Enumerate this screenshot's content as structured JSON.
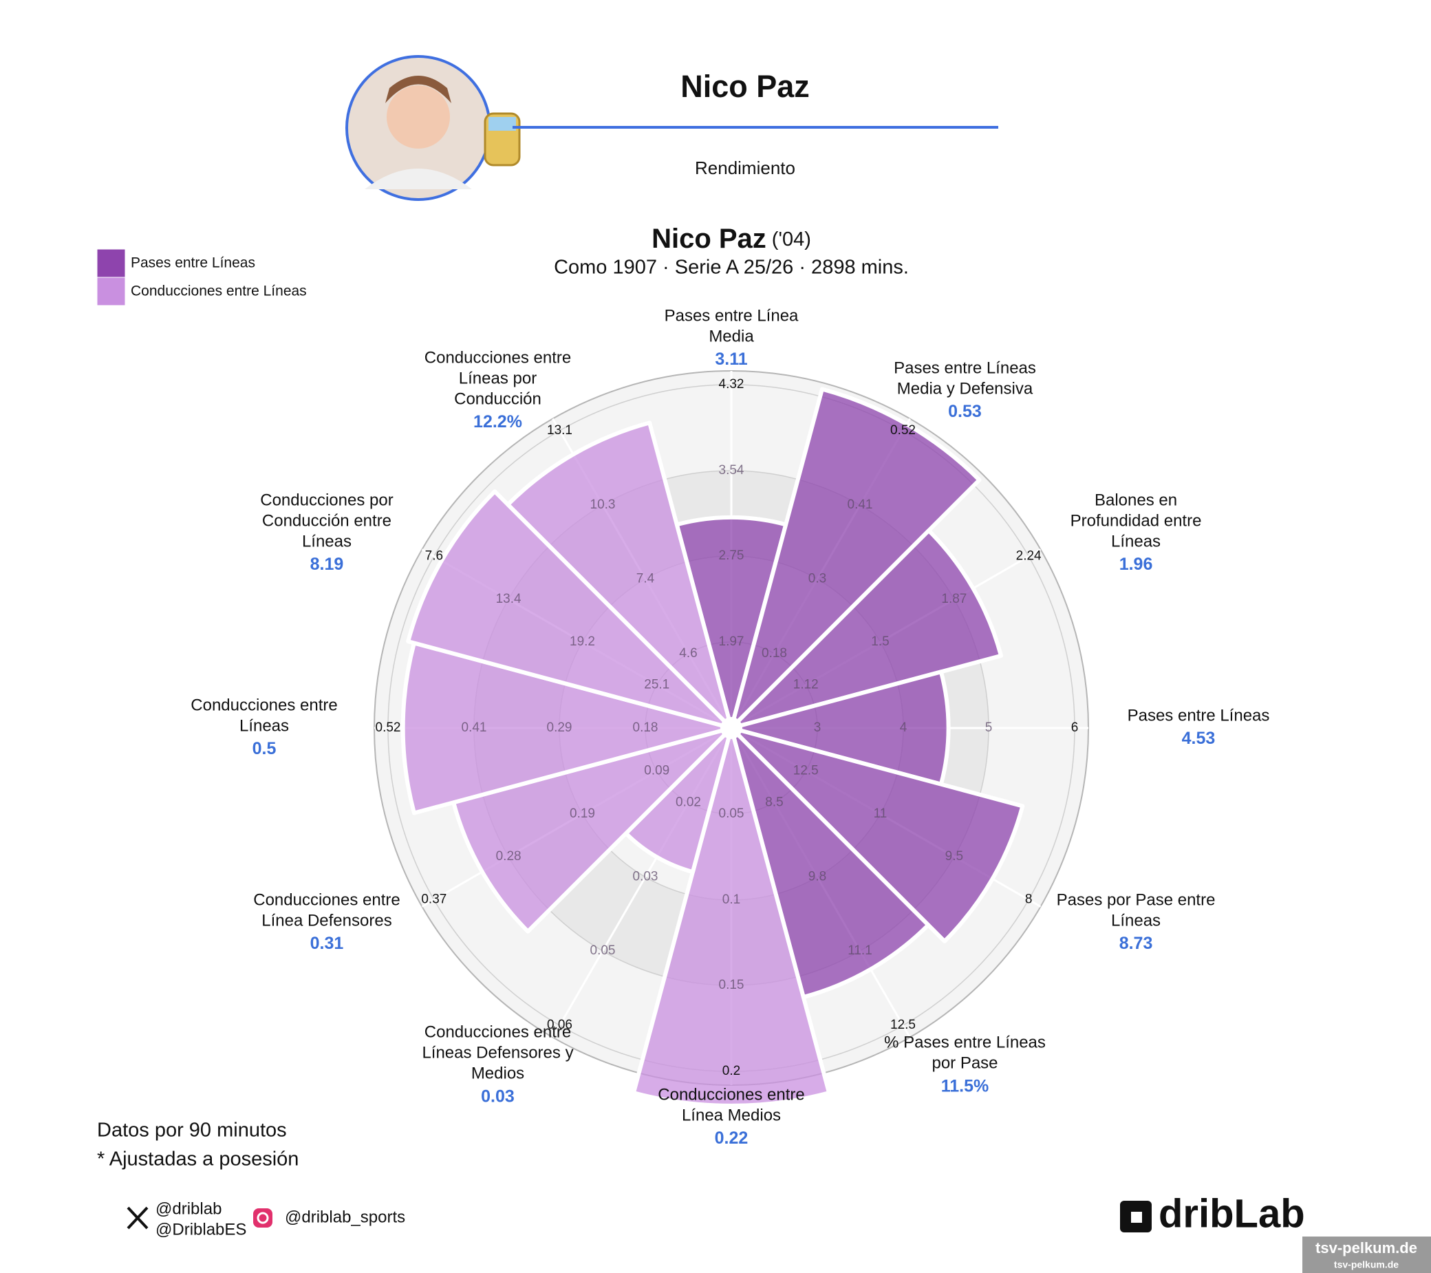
{
  "header": {
    "name": "Nico Paz",
    "subtitle": "Rendimiento"
  },
  "chart_data": {
    "type": "pizza",
    "title": "Nico Paz",
    "title_suffix": "('04)",
    "subtitle": "Como 1907 · Serie A 25/26 · 2898 mins.",
    "series": [
      {
        "name": "Pases entre Líneas",
        "color": "#8e44ad"
      },
      {
        "name": "Conducciones entre Líneas",
        "color": "#c990e0"
      }
    ],
    "categories": [
      [
        "Pases entre Línea",
        "Media"
      ],
      [
        "Pases entre Líneas",
        "Media y Defensiva"
      ],
      [
        "Balones en",
        "Profundidad entre",
        "Líneas"
      ],
      [
        "Pases entre Líneas"
      ],
      [
        "Pases por Pase entre",
        "Líneas"
      ],
      [
        "% Pases entre Líneas",
        "por Pase"
      ],
      [
        "Conducciones entre",
        "Línea Medios"
      ],
      [
        "Conducciones entre",
        "Líneas Defensores y",
        "Medios"
      ],
      [
        "Conducciones entre",
        "Línea Defensores"
      ],
      [
        "Conducciones entre",
        "Líneas"
      ],
      [
        "Conducciones por",
        "Conducción entre",
        "Líneas"
      ],
      [
        "Conducciones entre",
        "Líneas por",
        "Conducción"
      ]
    ],
    "values": [
      3.11,
      0.53,
      1.96,
      4.53,
      8.73,
      11.5,
      0.22,
      0.03,
      0.31,
      0.5,
      8.19,
      12.2
    ],
    "value_labels": [
      "3.11",
      "0.53",
      "1.96",
      "4.53",
      "8.73",
      "11.5%",
      "0.22",
      "0.03",
      "0.31",
      "0.5",
      "8.19",
      "12.2%"
    ],
    "groups": [
      0,
      0,
      0,
      0,
      0,
      0,
      1,
      1,
      1,
      1,
      1,
      1
    ],
    "axes": [
      {
        "lim": [
          1.19,
          4.32
        ],
        "ticks": [
          1.97,
          2.75,
          3.54,
          4.32
        ]
      },
      {
        "lim": [
          0.06,
          0.52
        ],
        "ticks": [
          0.18,
          0.3,
          0.41,
          0.52
        ]
      },
      {
        "lim": [
          0.74,
          2.24
        ],
        "ticks": [
          1.12,
          1.5,
          1.87,
          2.24
        ]
      },
      {
        "lim": [
          2,
          6
        ],
        "ticks": [
          3,
          4,
          5,
          6
        ]
      },
      {
        "lim": [
          14,
          8
        ],
        "ticks": [
          12.5,
          11,
          9.5,
          8
        ]
      },
      {
        "lim": [
          7.2,
          12.5
        ],
        "ticks": [
          8.5,
          9.8,
          11.1,
          12.5
        ]
      },
      {
        "lim": [
          0,
          0.2
        ],
        "ticks": [
          0.05,
          0.1,
          0.15,
          0.2
        ]
      },
      {
        "lim": [
          0.007,
          0.06
        ],
        "ticks": [
          0.02,
          0.03,
          0.05,
          0.06
        ]
      },
      {
        "lim": [
          0,
          0.37
        ],
        "ticks": [
          0.09,
          0.19,
          0.28,
          0.37
        ]
      },
      {
        "lim": [
          0.06,
          0.52
        ],
        "ticks": [
          0.18,
          0.29,
          0.41,
          0.52
        ]
      },
      {
        "lim": [
          30.9,
          7.6
        ],
        "ticks": [
          25.1,
          19.2,
          13.4,
          7.6
        ]
      },
      {
        "lim": [
          1.8,
          13.1
        ],
        "ticks": [
          4.6,
          7.4,
          10.3,
          13.1
        ]
      }
    ]
  },
  "notes": [
    "Datos por 90 minutos",
    "* Ajustadas a posesión"
  ],
  "social": {
    "x_handles": [
      "@driblab",
      "@DriblabES"
    ],
    "instagram": "@driblab_sports"
  },
  "brand": "dribLab",
  "watermark": [
    "tsv-pelkum.de",
    "tsv-pelkum.de"
  ]
}
